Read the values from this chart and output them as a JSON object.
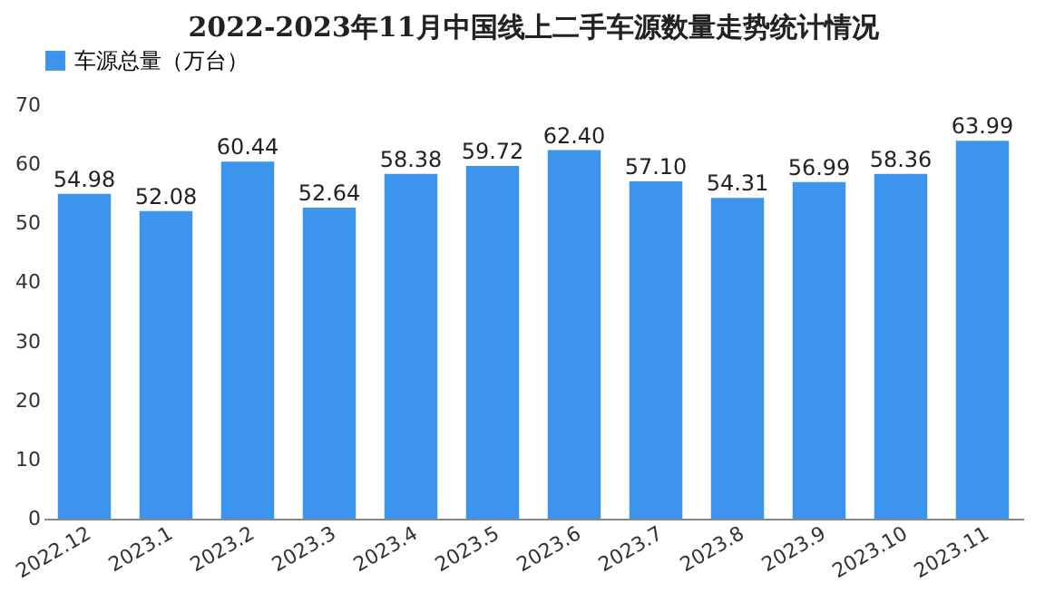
{
  "chart_data": {
    "type": "bar",
    "title": "2022-2023年11月中国线上二手车源数量走势统计情况",
    "categories": [
      "2022.12",
      "2023.1",
      "2023.2",
      "2023.3",
      "2023.4",
      "2023.5",
      "2023.6",
      "2023.7",
      "2023.8",
      "2023.9",
      "2023.10",
      "2023.11"
    ],
    "series": [
      {
        "name": "车源总量（万台）",
        "color": "#3d94ec",
        "values": [
          54.98,
          52.08,
          60.44,
          52.64,
          58.38,
          59.72,
          62.4,
          57.1,
          54.31,
          56.99,
          58.36,
          63.99
        ]
      }
    ],
    "value_labels": [
      "54.98",
      "52.08",
      "60.44",
      "52.64",
      "58.38",
      "59.72",
      "62.40",
      "57.10",
      "54.31",
      "56.99",
      "58.36",
      "63.99"
    ],
    "ylim": [
      0,
      70
    ],
    "yticks": [
      0,
      10,
      20,
      30,
      40,
      50,
      60,
      70
    ],
    "legend": "top",
    "grid": false
  }
}
